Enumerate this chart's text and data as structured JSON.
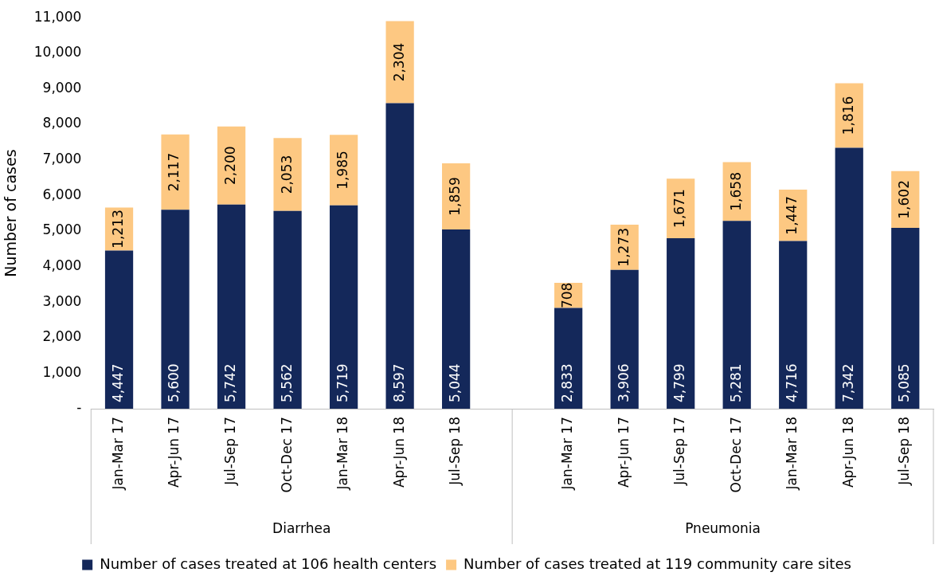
{
  "chart_data": {
    "type": "bar",
    "stacked": true,
    "ylabel": "Number of cases",
    "categories": [
      "Jan-Mar 17",
      "Apr-Jun 17",
      "Jul-Sep 17",
      "Oct-Dec 17",
      "Jan-Mar 18",
      "Apr-Jun 18",
      "Jul-Sep 18",
      null,
      "Jan-Mar 17",
      "Apr-Jun 17",
      "Jul-Sep 17",
      "Oct-Dec 17",
      "Jan-Mar 18",
      "Apr-Jun 18",
      "Jul-Sep 18"
    ],
    "series": [
      {
        "name": "Number of cases treated at 106 health centers",
        "color": "#14285a",
        "values": [
          4447,
          5600,
          5742,
          5562,
          5719,
          8597,
          5044,
          null,
          2833,
          3906,
          4799,
          5281,
          4716,
          7342,
          5085
        ],
        "value_labels": [
          "4,447",
          "5,600",
          "5,742",
          "5,562",
          "5,719",
          "8,597",
          "5,044",
          null,
          "2,833",
          "3,906",
          "4,799",
          "5,281",
          "4,716",
          "7,342",
          "5,085"
        ]
      },
      {
        "name": "Number of cases treated at 119 community care sites",
        "color": "#fdc882",
        "values": [
          1213,
          2117,
          2200,
          2053,
          1985,
          2304,
          1859,
          null,
          708,
          1273,
          1671,
          1658,
          1447,
          1816,
          1602
        ],
        "value_labels": [
          "1,213",
          "2,117",
          "2,200",
          "2,053",
          "1,985",
          "2,304",
          "1,859",
          null,
          "708",
          "1,273",
          "1,671",
          "1,658",
          "1,447",
          "1,816",
          "1,602"
        ]
      }
    ],
    "ylim": [
      0,
      11000
    ],
    "yticks": [
      {
        "value": 0,
        "label": "-"
      },
      {
        "value": 1000,
        "label": "1,000"
      },
      {
        "value": 2000,
        "label": "2,000"
      },
      {
        "value": 3000,
        "label": "3,000"
      },
      {
        "value": 4000,
        "label": "4,000"
      },
      {
        "value": 5000,
        "label": "5,000"
      },
      {
        "value": 6000,
        "label": "6,000"
      },
      {
        "value": 7000,
        "label": "7,000"
      },
      {
        "value": 8000,
        "label": "8,000"
      },
      {
        "value": 9000,
        "label": "9,000"
      },
      {
        "value": 10000,
        "label": "10,000"
      },
      {
        "value": 11000,
        "label": "11,000"
      }
    ],
    "annotations": [
      "Diarrhea",
      "Pneumonia"
    ],
    "grid": false,
    "legend": "bottom"
  }
}
